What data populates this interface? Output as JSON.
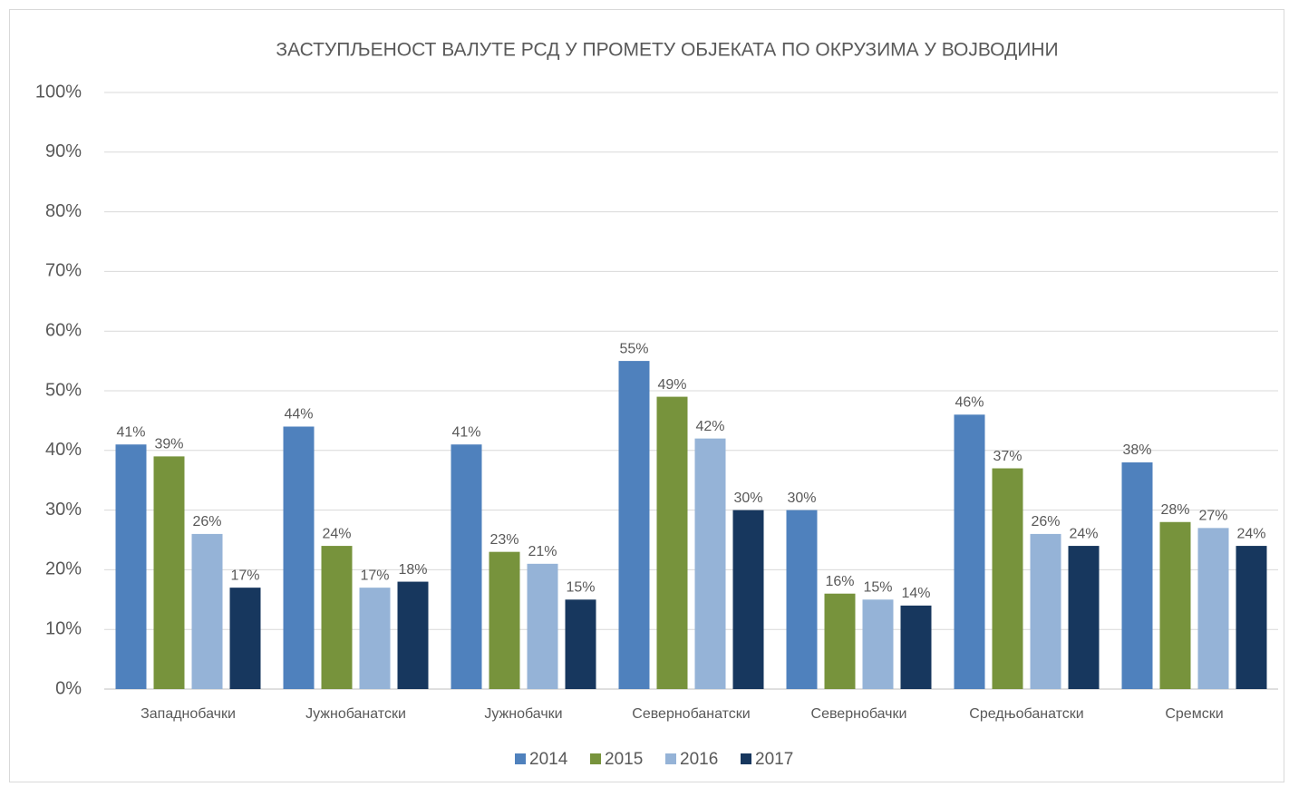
{
  "chart_data": {
    "type": "bar",
    "title": "ЗАСТУПЉЕНОСТ ВАЛУТЕ РСД У ПРОМЕТУ ОБЈЕКАТА ПО ОКРУЗИМА У ВОЈВОДИНИ",
    "categories": [
      "Западнобачки",
      "Јужнобанатски",
      "Јужнобачки",
      "Севернобанатски",
      "Севернобачки",
      "Средњобанатски",
      "Сремски"
    ],
    "series": [
      {
        "name": "2014",
        "color": "#4f81bd",
        "values": [
          41,
          44,
          41,
          55,
          30,
          46,
          38
        ],
        "value_labels": [
          "41%",
          "44%",
          "41%",
          "55%",
          "30%",
          "46%",
          "38%"
        ]
      },
      {
        "name": "2015",
        "color": "#77933c",
        "values": [
          39,
          24,
          23,
          49,
          16,
          37,
          28
        ],
        "value_labels": [
          "39%",
          "24%",
          "23%",
          "49%",
          "16%",
          "37%",
          "28%"
        ]
      },
      {
        "name": "2016",
        "color": "#95b3d7",
        "values": [
          26,
          17,
          21,
          42,
          15,
          26,
          27
        ],
        "value_labels": [
          "26%",
          "17%",
          "21%",
          "42%",
          "15%",
          "26%",
          "27%"
        ]
      },
      {
        "name": "2017",
        "color": "#17375e",
        "values": [
          17,
          18,
          15,
          30,
          14,
          24,
          24
        ],
        "value_labels": [
          "17%",
          "18%",
          "15%",
          "30%",
          "14%",
          "24%",
          "24%"
        ]
      }
    ],
    "ylim": [
      0,
      100
    ],
    "yticks": [
      {
        "value": 0,
        "label": "0%"
      },
      {
        "value": 10,
        "label": "10%"
      },
      {
        "value": 20,
        "label": "20%"
      },
      {
        "value": 30,
        "label": "30%"
      },
      {
        "value": 40,
        "label": "40%"
      },
      {
        "value": 50,
        "label": "50%"
      },
      {
        "value": 60,
        "label": "60%"
      },
      {
        "value": 70,
        "label": "70%"
      },
      {
        "value": 80,
        "label": "80%"
      },
      {
        "value": 90,
        "label": "90%"
      },
      {
        "value": 100,
        "label": "100%"
      }
    ],
    "grid": true,
    "legend": "bottom"
  }
}
